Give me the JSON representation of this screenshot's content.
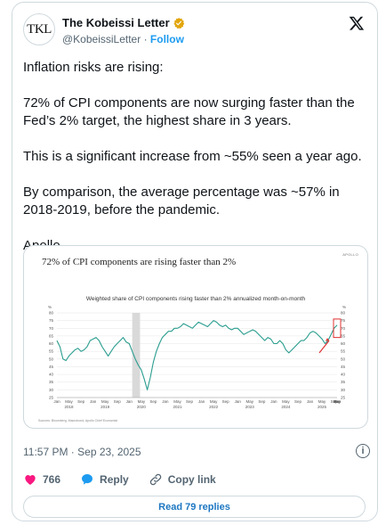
{
  "tweet": {
    "avatar_text": "TKL",
    "author_name": "The Kobeissi Letter",
    "handle": "@KobeissiLetter",
    "separator": " · ",
    "follow_label": "Follow",
    "paragraphs": [
      "Inflation risks are rising:",
      "72% of CPI components are now surging faster than the Fed’s 2% target, the highest share in 3 years.",
      "This is a significant increase from ~55% seen a year ago.",
      "By comparison, the average percentage was ~57% in 2018-2019, before the pandemic.",
      "Apollo"
    ],
    "timestamp": "11:57 PM · Sep 23, 2025",
    "info_label": "i",
    "likes": "766",
    "reply_label": "Reply",
    "copy_link_label": "Copy link",
    "read_replies_label": "Read 79 replies",
    "colors": {
      "accent": "#1d9bf0",
      "like": "#f91880",
      "verified": "#e2a60c"
    }
  },
  "media": {
    "title": "72% of CPI components are rising faster than 2%",
    "brand": "APOLLO",
    "sources": "Sources: Bloomberg, Macrobond, Apollo Chief Economist"
  },
  "chart_data": {
    "type": "line",
    "title": "72% of CPI components are rising faster than 2%",
    "subtitle": "Weighted share of CPI components rising faster than 2% annualized month-on-month",
    "ylabel_left": "%",
    "ylabel_right": "%",
    "ylim": [
      25,
      80
    ],
    "yticks": [
      25,
      30,
      35,
      40,
      45,
      50,
      55,
      60,
      65,
      70,
      75,
      80
    ],
    "x_month_labels": [
      "Jan",
      "May",
      "Sep",
      "Jan",
      "May",
      "Sep",
      "Jan",
      "May",
      "Sep",
      "Jan",
      "May",
      "Sep",
      "Jan",
      "May",
      "Sep",
      "Jan",
      "May",
      "Sep",
      "Jan",
      "May",
      "Sep",
      "Jan",
      "May",
      "Sep",
      "Jan",
      "May",
      "Sep"
    ],
    "x_year_labels": [
      "2018",
      "2019",
      "2020",
      "2021",
      "2022",
      "2023",
      "2024",
      "2025"
    ],
    "shaded_period": {
      "from": "2020-02",
      "to": "2020-04",
      "color": "#d9d9d9"
    },
    "line_color": "#2a9d8f",
    "highlight_color": "#e03030",
    "series": [
      {
        "values": [
          62,
          58,
          50,
          49,
          52,
          54,
          56,
          57,
          55,
          56,
          58,
          62,
          63,
          64,
          62,
          58,
          55,
          52,
          55,
          58,
          60,
          62,
          64,
          61,
          60,
          55,
          50,
          46,
          43,
          37,
          30,
          38,
          48,
          55,
          60,
          64,
          66,
          68,
          68,
          70,
          70,
          71,
          73,
          72,
          71,
          70,
          72,
          74,
          73,
          72,
          71,
          73,
          75,
          74,
          72,
          71,
          72,
          70,
          69,
          70,
          70,
          68,
          66,
          67,
          68,
          69,
          68,
          66,
          64,
          62,
          64,
          63,
          60,
          60,
          62,
          60,
          56,
          54,
          56,
          58,
          60,
          62,
          62,
          64,
          67,
          68,
          67,
          65,
          63,
          60,
          62,
          66,
          70,
          72
        ]
      }
    ],
    "x_start": "2018-01",
    "x_end": "2025-09"
  }
}
